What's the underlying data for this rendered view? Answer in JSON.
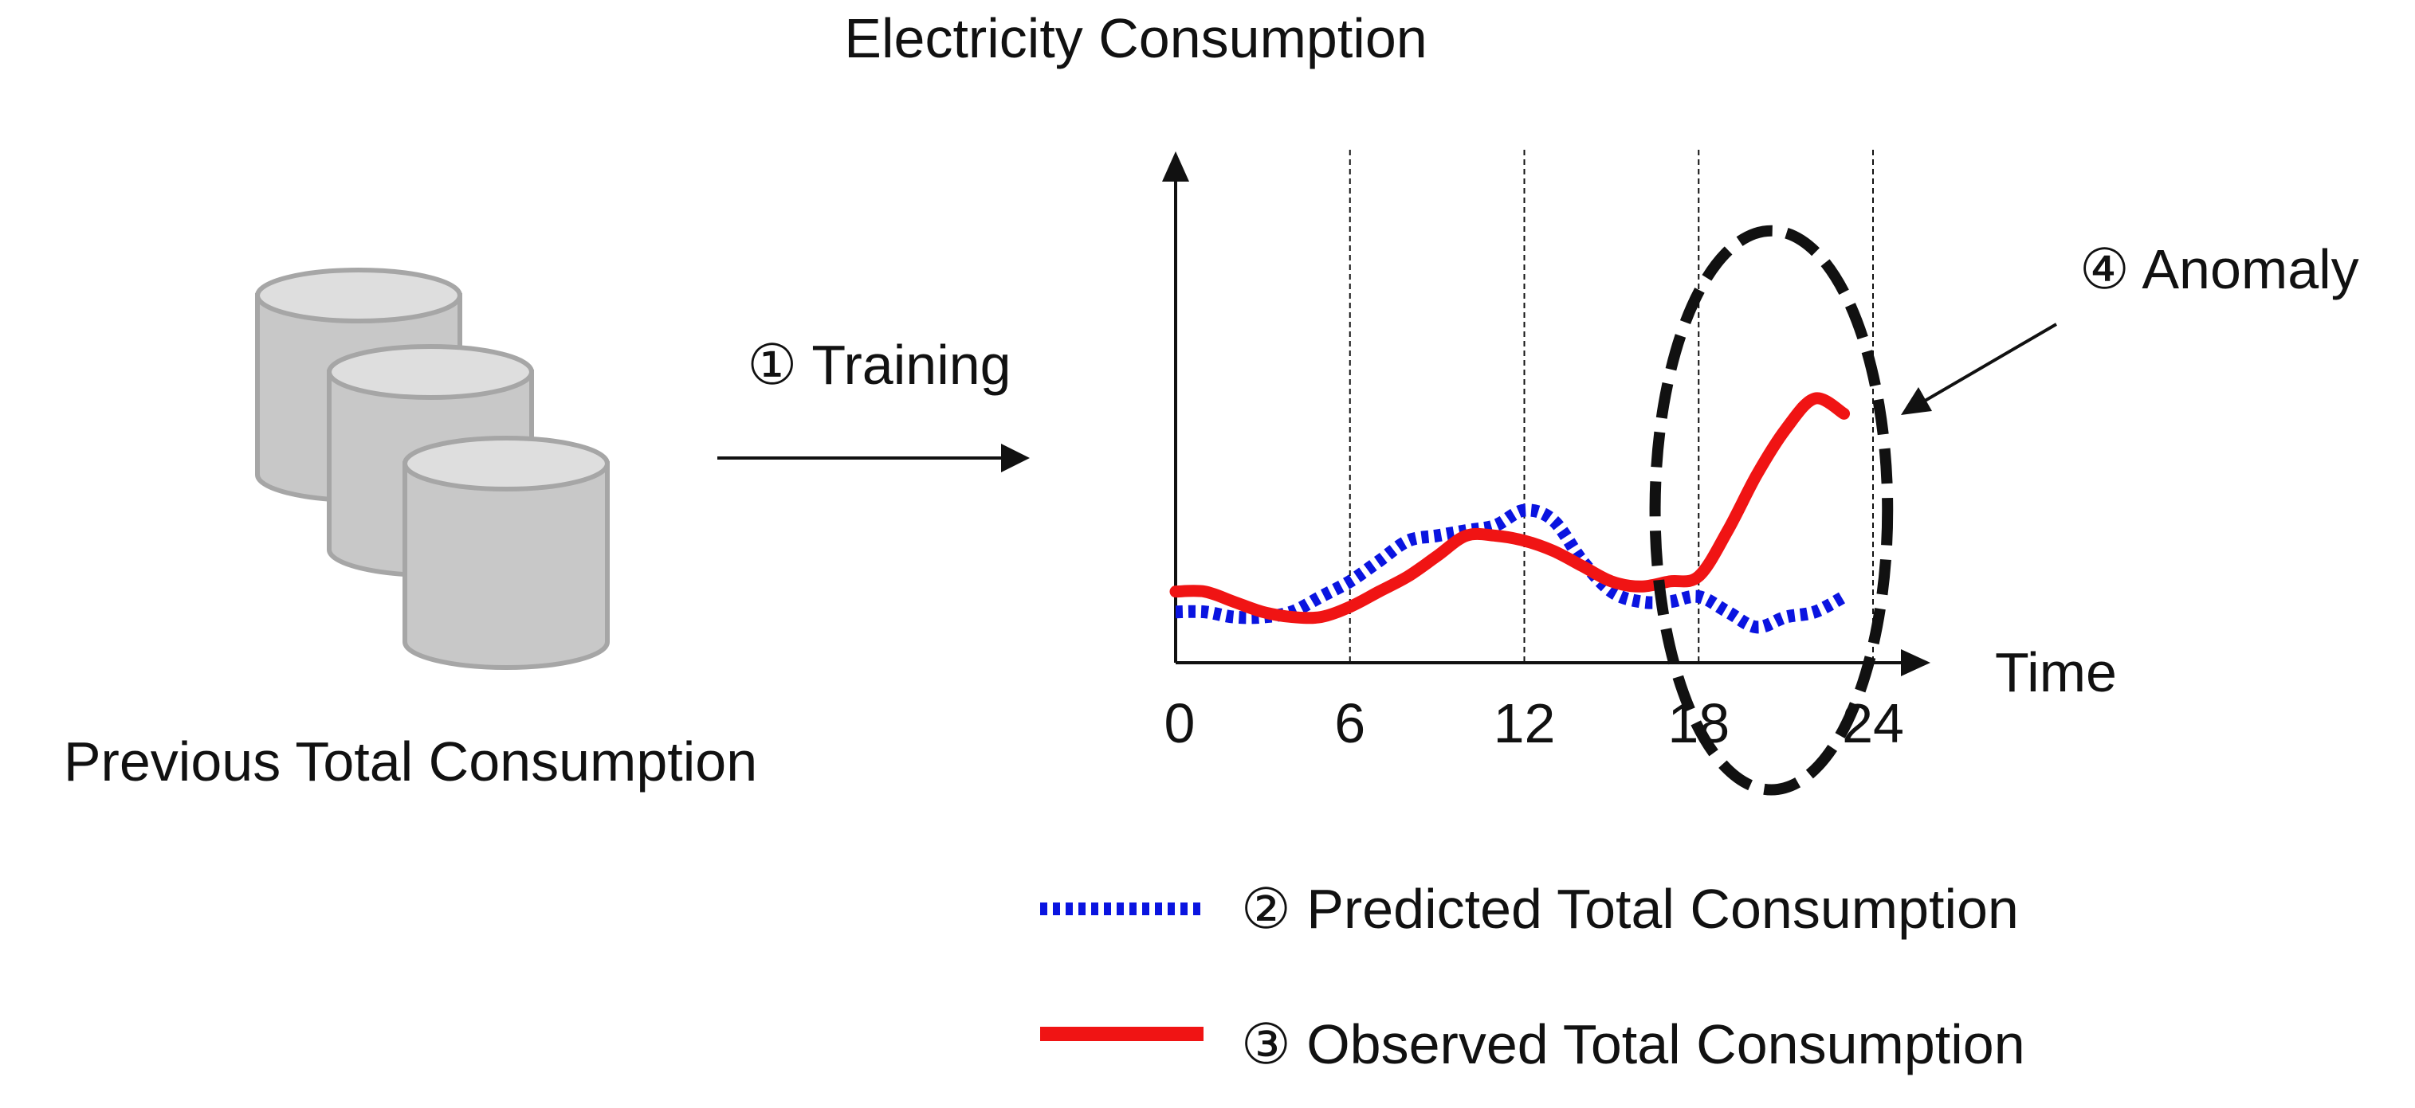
{
  "diagram": {
    "database_caption": "Previous Total Consumption",
    "training_label": "① Training",
    "anomaly_label": "④ Anomaly"
  },
  "chart_data": {
    "type": "line",
    "title": "Electricity Consumption",
    "xlabel": "Time",
    "ylabel": "",
    "xlim": [
      0,
      24
    ],
    "ylim": [
      0,
      100
    ],
    "x_ticks": [
      "0",
      "6",
      "12",
      "18",
      "24"
    ],
    "vertical_guides": [
      6,
      12,
      18,
      24
    ],
    "series": [
      {
        "name": "② Predicted Total Consumption",
        "style": "dotted",
        "color": "#0a14e0",
        "points": [
          [
            0,
            10
          ],
          [
            1,
            10
          ],
          [
            2,
            9
          ],
          [
            3,
            9
          ],
          [
            4,
            10
          ],
          [
            5,
            13
          ],
          [
            6,
            16
          ],
          [
            7,
            20
          ],
          [
            8,
            24
          ],
          [
            9,
            25
          ],
          [
            10,
            26
          ],
          [
            11,
            27
          ],
          [
            12,
            30
          ],
          [
            13,
            28
          ],
          [
            14,
            20
          ],
          [
            15,
            14
          ],
          [
            16,
            12
          ],
          [
            17,
            12
          ],
          [
            18,
            13
          ],
          [
            19,
            10
          ],
          [
            20,
            7
          ],
          [
            21,
            9
          ],
          [
            22,
            10
          ],
          [
            23,
            13
          ]
        ]
      },
      {
        "name": "③ Observed Total Consumption",
        "style": "solid",
        "color": "#f01414",
        "points": [
          [
            0,
            14
          ],
          [
            1,
            14
          ],
          [
            2,
            12
          ],
          [
            3,
            10
          ],
          [
            4,
            9
          ],
          [
            5,
            9
          ],
          [
            6,
            11
          ],
          [
            7,
            14
          ],
          [
            8,
            17
          ],
          [
            9,
            21
          ],
          [
            10,
            25
          ],
          [
            11,
            25
          ],
          [
            12,
            24
          ],
          [
            13,
            22
          ],
          [
            14,
            19
          ],
          [
            15,
            16
          ],
          [
            16,
            15
          ],
          [
            17,
            16
          ],
          [
            18,
            17
          ],
          [
            19,
            26
          ],
          [
            20,
            37
          ],
          [
            21,
            46
          ],
          [
            22,
            52
          ],
          [
            23,
            49
          ]
        ]
      }
    ],
    "annotation": {
      "text": "④ Anomaly",
      "center": [
        20.5,
        30
      ],
      "x_radius": 4,
      "y_radius": 55
    }
  }
}
